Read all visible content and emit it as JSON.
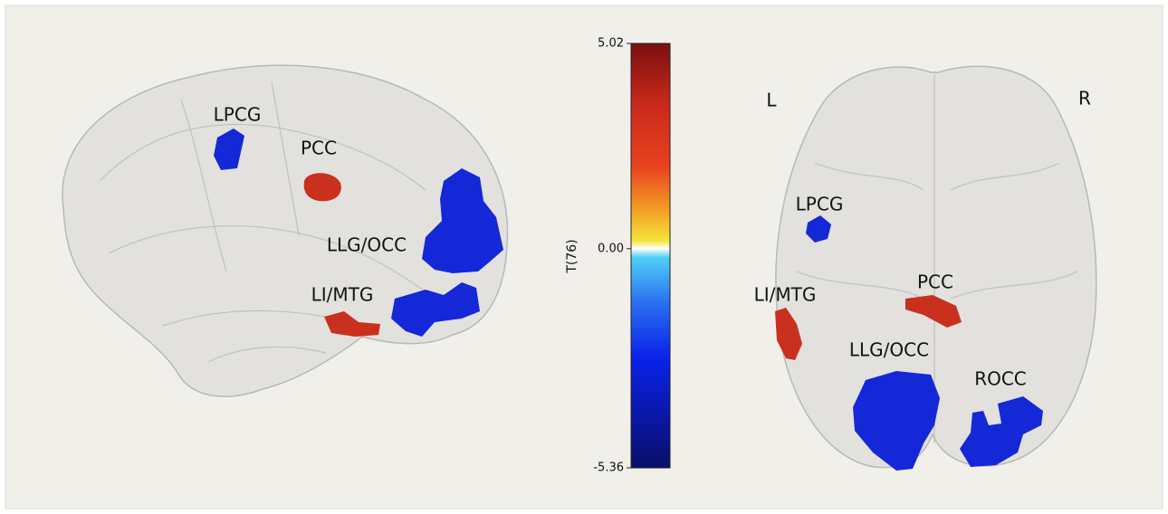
{
  "colorbar": {
    "label": "T(76)",
    "lim": [
      -5.36,
      5.02
    ],
    "ticks": [
      5.02,
      {
        "value": 0,
        "label": "0.00"
      },
      -5.36
    ]
  },
  "sagittal": {
    "labels": [
      "LPCG",
      "PCC",
      "LLG/OCC",
      "LI/MTG"
    ]
  },
  "axial": {
    "orientation": [
      "L",
      "R"
    ],
    "labels": [
      "LPCG",
      "LI/MTG",
      "PCC",
      "LLG/OCC",
      "ROCC"
    ]
  }
}
